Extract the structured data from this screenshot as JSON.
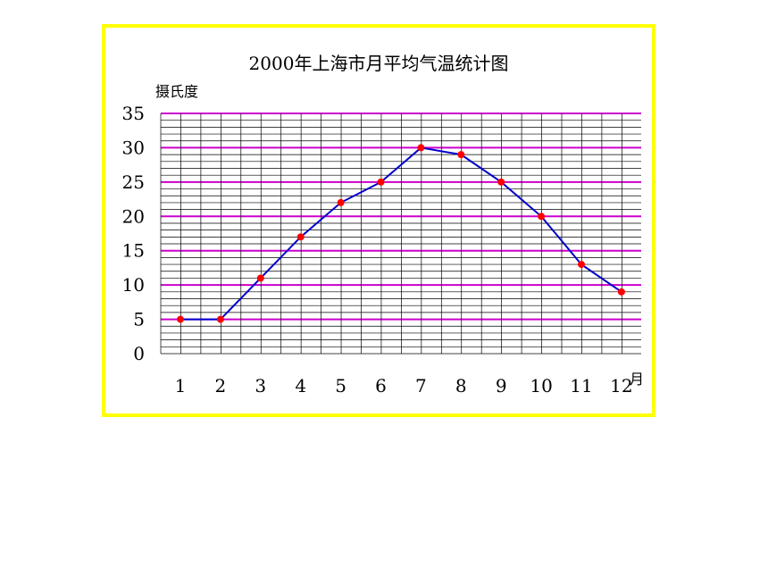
{
  "chart_data": {
    "type": "line",
    "title": "2000年上海市月平均气温统计图",
    "ylabel": "摄氏度",
    "xlabel": "月",
    "categories": [
      "1",
      "2",
      "3",
      "4",
      "5",
      "6",
      "7",
      "8",
      "9",
      "10",
      "11",
      "12"
    ],
    "series": [
      {
        "values": [
          5,
          5,
          11,
          17,
          22,
          25,
          30,
          29,
          25,
          20,
          13,
          9
        ]
      }
    ],
    "ylim": [
      0,
      35
    ],
    "yticks": [
      "0",
      "5",
      "10",
      "15",
      "20",
      "25",
      "30",
      "35"
    ],
    "grid": true,
    "colors": {
      "line": "#0000cc",
      "point": "#ff0000",
      "major_grid": "#cc00cc",
      "minor_grid": "#000000",
      "frame": "#ffff00"
    }
  }
}
